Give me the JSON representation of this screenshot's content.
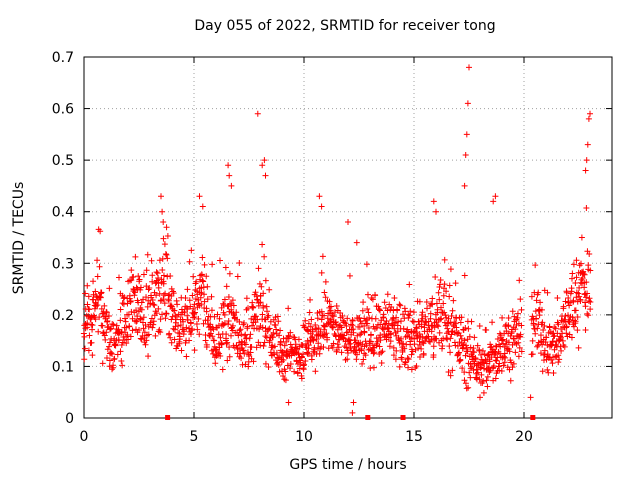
{
  "chart_data": {
    "type": "scatter",
    "title": "Day 055 of 2022, SRMTID for receiver tong",
    "xlabel": "GPS time / hours",
    "ylabel": "SRMTID / TECUs",
    "xlim": [
      0,
      24
    ],
    "ylim": [
      0,
      0.7
    ],
    "xticks": [
      0,
      5,
      10,
      15,
      20
    ],
    "yticks": [
      0,
      0.1,
      0.2,
      0.3,
      0.4,
      0.5,
      0.6,
      0.7
    ],
    "grid": true,
    "series_color": "#ff0000",
    "marker": "plus",
    "gap_markers_x": [
      3.8,
      12.9,
      14.5,
      20.4
    ],
    "profile": [
      {
        "t": 0.0,
        "base": 0.17,
        "spread": 0.05
      },
      {
        "t": 0.7,
        "base": 0.22,
        "spread": 0.08
      },
      {
        "t": 1.3,
        "base": 0.13,
        "spread": 0.05
      },
      {
        "t": 2.2,
        "base": 0.23,
        "spread": 0.07
      },
      {
        "t": 3.0,
        "base": 0.2,
        "spread": 0.06
      },
      {
        "t": 3.7,
        "base": 0.27,
        "spread": 0.08
      },
      {
        "t": 4.3,
        "base": 0.16,
        "spread": 0.05
      },
      {
        "t": 5.3,
        "base": 0.24,
        "spread": 0.08
      },
      {
        "t": 6.0,
        "base": 0.14,
        "spread": 0.05
      },
      {
        "t": 6.6,
        "base": 0.2,
        "spread": 0.07
      },
      {
        "t": 7.3,
        "base": 0.14,
        "spread": 0.05
      },
      {
        "t": 8.0,
        "base": 0.21,
        "spread": 0.07
      },
      {
        "t": 9.0,
        "base": 0.12,
        "spread": 0.05
      },
      {
        "t": 10.0,
        "base": 0.13,
        "spread": 0.05
      },
      {
        "t": 11.0,
        "base": 0.19,
        "spread": 0.06
      },
      {
        "t": 12.0,
        "base": 0.15,
        "spread": 0.05
      },
      {
        "t": 13.5,
        "base": 0.17,
        "spread": 0.06
      },
      {
        "t": 15.0,
        "base": 0.15,
        "spread": 0.06
      },
      {
        "t": 16.3,
        "base": 0.2,
        "spread": 0.07
      },
      {
        "t": 17.3,
        "base": 0.13,
        "spread": 0.06
      },
      {
        "t": 18.2,
        "base": 0.09,
        "spread": 0.04
      },
      {
        "t": 19.0,
        "base": 0.14,
        "spread": 0.05
      },
      {
        "t": 20.5,
        "base": 0.18,
        "spread": 0.06
      },
      {
        "t": 21.3,
        "base": 0.13,
        "spread": 0.05
      },
      {
        "t": 22.2,
        "base": 0.22,
        "spread": 0.07
      },
      {
        "t": 23.0,
        "base": 0.27,
        "spread": 0.08
      }
    ],
    "sample_step_hours": 0.04,
    "gap_ranges": [
      [
        19.9,
        20.35
      ]
    ],
    "peaks": [
      {
        "x": 3.5,
        "y": 0.43
      },
      {
        "x": 3.55,
        "y": 0.4
      },
      {
        "x": 3.6,
        "y": 0.38
      },
      {
        "x": 5.25,
        "y": 0.43
      },
      {
        "x": 5.4,
        "y": 0.41
      },
      {
        "x": 6.55,
        "y": 0.49
      },
      {
        "x": 6.6,
        "y": 0.47
      },
      {
        "x": 6.7,
        "y": 0.45
      },
      {
        "x": 7.9,
        "y": 0.59
      },
      {
        "x": 8.1,
        "y": 0.49
      },
      {
        "x": 8.2,
        "y": 0.5
      },
      {
        "x": 8.25,
        "y": 0.47
      },
      {
        "x": 10.7,
        "y": 0.43
      },
      {
        "x": 10.8,
        "y": 0.41
      },
      {
        "x": 12.0,
        "y": 0.38
      },
      {
        "x": 12.4,
        "y": 0.34
      },
      {
        "x": 15.9,
        "y": 0.42
      },
      {
        "x": 16.0,
        "y": 0.4
      },
      {
        "x": 17.3,
        "y": 0.45
      },
      {
        "x": 17.35,
        "y": 0.51
      },
      {
        "x": 17.4,
        "y": 0.55
      },
      {
        "x": 17.45,
        "y": 0.61
      },
      {
        "x": 17.5,
        "y": 0.68
      },
      {
        "x": 18.6,
        "y": 0.42
      },
      {
        "x": 18.7,
        "y": 0.43
      },
      {
        "x": 22.8,
        "y": 0.48
      },
      {
        "x": 22.85,
        "y": 0.5
      },
      {
        "x": 22.9,
        "y": 0.53
      },
      {
        "x": 22.95,
        "y": 0.58
      },
      {
        "x": 23.0,
        "y": 0.59
      }
    ],
    "lows": [
      {
        "x": 12.2,
        "y": 0.01
      },
      {
        "x": 12.25,
        "y": 0.03
      },
      {
        "x": 9.3,
        "y": 0.03
      },
      {
        "x": 18.0,
        "y": 0.04
      },
      {
        "x": 20.3,
        "y": 0.04
      }
    ]
  }
}
